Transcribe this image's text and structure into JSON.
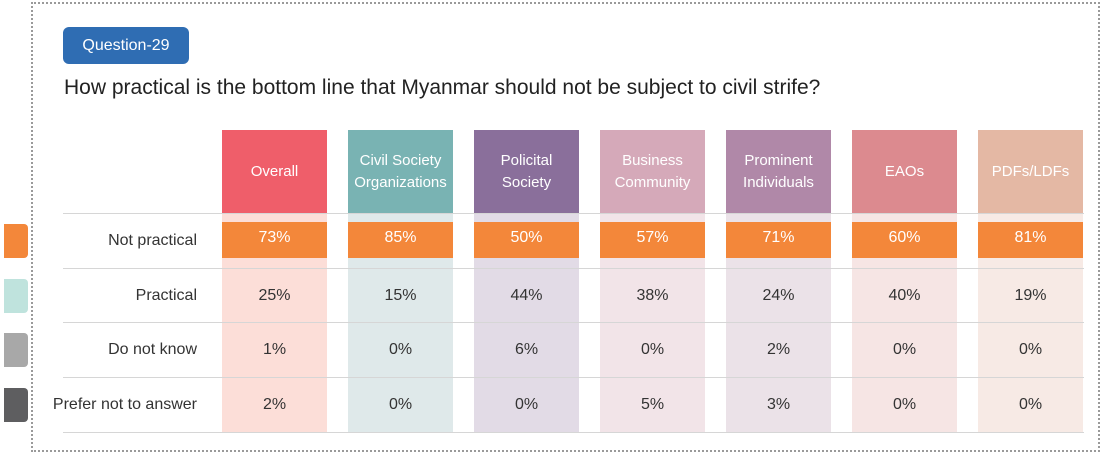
{
  "badge": "Question-29",
  "question": "How practical is the bottom line that Myanmar should not be subject to civil strife?",
  "colors": {
    "badge_bg": "#2f6db3",
    "highlight_row": "#f3873a",
    "swatches": [
      "#f3873a",
      "#bfe3dd",
      "#a8a8a8",
      "#5e5e60"
    ]
  },
  "chart_data": {
    "type": "table",
    "columns": [
      {
        "label": "Overall",
        "head_color": "#ef5e6a",
        "body_color": "#fcded8"
      },
      {
        "label": "Civil Society Organizations",
        "head_color": "#79b3b3",
        "body_color": "#dfe9ea"
      },
      {
        "label": "Policital Society",
        "head_color": "#8a6f9b",
        "body_color": "#e2dbe6"
      },
      {
        "label": "Business Community",
        "head_color": "#d5a9b9",
        "body_color": "#f2e4e8"
      },
      {
        "label": "Prominent Individuals",
        "head_color": "#b088a8",
        "body_color": "#ebe2e8"
      },
      {
        "label": "EAOs",
        "head_color": "#dc8a8f",
        "body_color": "#f6e5e4"
      },
      {
        "label": "PDFs/LDFs",
        "head_color": "#e4b8a4",
        "body_color": "#f7eae5"
      }
    ],
    "rows": [
      {
        "label": "Not practical",
        "values": [
          "73%",
          "85%",
          "50%",
          "57%",
          "71%",
          "60%",
          "81%"
        ],
        "highlight": true
      },
      {
        "label": "Practical",
        "values": [
          "25%",
          "15%",
          "44%",
          "38%",
          "24%",
          "40%",
          "19%"
        ],
        "highlight": false
      },
      {
        "label": "Do not know",
        "values": [
          "1%",
          "0%",
          "6%",
          "0%",
          "2%",
          "0%",
          "0%"
        ],
        "highlight": false
      },
      {
        "label": "Prefer not to answer",
        "values": [
          "2%",
          "0%",
          "0%",
          "5%",
          "3%",
          "0%",
          "0%"
        ],
        "highlight": false
      }
    ]
  }
}
